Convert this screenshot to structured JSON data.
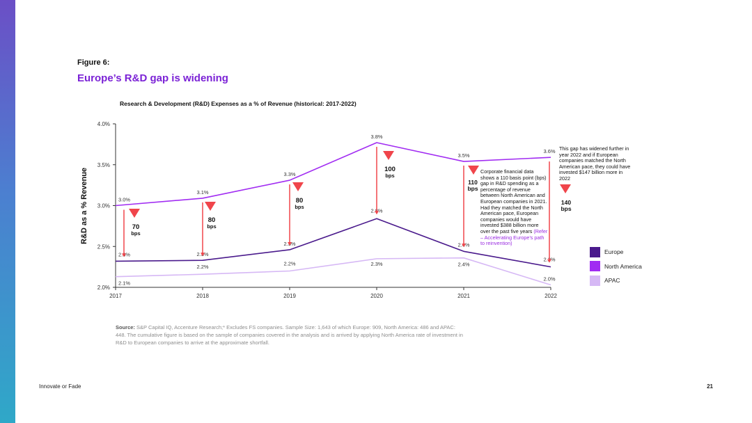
{
  "page": {
    "figure_label": "Figure 6:",
    "figure_title": "Europe’s R&D gap is widening",
    "source_label": "Source:",
    "source_text": "S&P Capital IQ, Accenture Research;* Excludes FS companies. Sample Size: 1,643 of which Europe: 909, North America: 486 and APAC: 448. The cumulative figure is based on the sample of companies covered in the analysis and is arrived by applying North America rate of investment in R&D to European companies to arrive at the approximate shortfall.",
    "footer_left": "Innovate or Fade",
    "footer_right": "21"
  },
  "annotations": {
    "gap_2021_value": "110",
    "gap_2021_unit": "bps",
    "gap_2021_text": "Corporate financial data shows a 110 basis point (bps) gap in R&D spending as a percentage of revenue between North American and European companies in 2021. Had they matched the North American pace, European companies would have invested $388 billion more over the past five years",
    "gap_2021_link": "(Refer – Accelerating Europe’s path to reinvention)",
    "gap_2022_text": "This gap has widened further in year 2022 and if European companies matched the North American pace, they could have invested $147 billion more in 2022",
    "gap_2022_value": "140",
    "gap_2022_unit": "bps"
  },
  "chart_data": {
    "type": "line",
    "title": "Research & Development (R&D) Expenses as a % of Revenue (historical: 2017-2022)",
    "ylabel": "R&D as a % Revenue",
    "xlabel": "",
    "x": [
      2017,
      2018,
      2019,
      2020,
      2021,
      2022
    ],
    "ylim": [
      2.0,
      4.0
    ],
    "yticks": [
      "2.0%",
      "2.5%",
      "3.0%",
      "3.5%",
      "4.0%"
    ],
    "ytick_values": [
      2.0,
      2.5,
      3.0,
      3.5,
      4.0
    ],
    "series": [
      {
        "name": "Europe",
        "color": "#4a1a8c",
        "values": [
          2.32,
          2.33,
          2.46,
          2.84,
          2.44,
          2.25
        ],
        "labels": [
          "2.3%",
          "2.3%",
          "2.5%",
          "2.8%",
          "2.4%",
          "2.2%"
        ]
      },
      {
        "name": "North America",
        "color": "#a12cf2",
        "values": [
          3.0,
          3.09,
          3.31,
          3.77,
          3.54,
          3.59
        ],
        "labels": [
          "3.0%",
          "3.1%",
          "3.3%",
          "3.8%",
          "3.5%",
          "3.6%"
        ]
      },
      {
        "name": "APAC",
        "color": "#d6b8f5",
        "values": [
          2.13,
          2.16,
          2.2,
          2.35,
          2.36,
          2.03
        ],
        "labels": [
          "2.1%",
          "2.2%",
          "2.2%",
          "2.3%",
          "2.4%",
          "2.0%"
        ]
      }
    ],
    "gaps": [
      {
        "x": 2017,
        "value": "70",
        "unit": "bps"
      },
      {
        "x": 2018,
        "value": "80",
        "unit": "bps"
      },
      {
        "x": 2019,
        "value": "80",
        "unit": "bps"
      },
      {
        "x": 2020,
        "value": "100",
        "unit": "bps"
      },
      {
        "x": 2021,
        "value": "110",
        "unit": "bps"
      },
      {
        "x": 2022,
        "value": "140",
        "unit": "bps"
      }
    ],
    "gap_arrow_color": "#f0454b",
    "legend": "right",
    "grid": false
  }
}
